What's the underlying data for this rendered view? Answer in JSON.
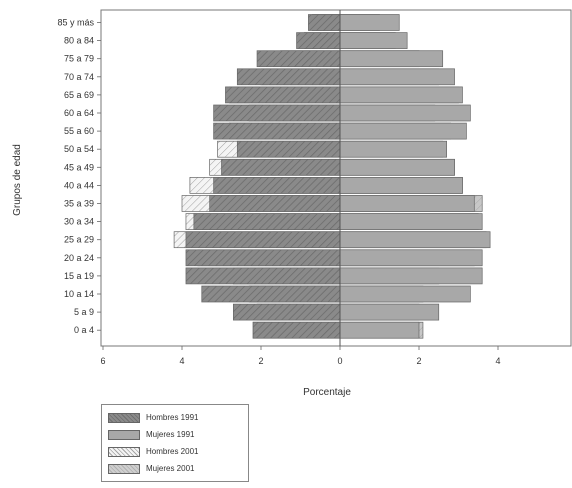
{
  "chart_data": {
    "type": "bar",
    "orientation": "horizontal",
    "subtype": "population-pyramid",
    "categories": [
      "0 a 4",
      "5 a 9",
      "10 a 14",
      "15 a 19",
      "20 a 24",
      "25 a 29",
      "30 a 34",
      "35 a 39",
      "40 a 44",
      "45 a 49",
      "50 a 54",
      "55 a 60",
      "60 a 64",
      "65 a 69",
      "70 a 74",
      "75 a 79",
      "80 a 84",
      "85 y más"
    ],
    "series": [
      {
        "name": "Hombres 1991",
        "side": "left",
        "color": "#8a8a8a",
        "pattern": "hatch-dark",
        "values": [
          2.2,
          2.7,
          3.5,
          3.9,
          3.9,
          3.9,
          3.7,
          3.3,
          3.2,
          3.0,
          2.6,
          3.2,
          3.2,
          2.9,
          2.6,
          2.1,
          1.1,
          0.8
        ]
      },
      {
        "name": "Mujeres 1991",
        "side": "right",
        "color": "#a8a8a8",
        "pattern": "solid",
        "values": [
          2.0,
          2.5,
          3.3,
          3.6,
          3.6,
          3.8,
          3.6,
          3.4,
          3.1,
          2.9,
          2.7,
          3.2,
          3.3,
          3.1,
          2.9,
          2.6,
          1.7,
          1.5
        ]
      },
      {
        "name": "Hombres 2001",
        "side": "left",
        "color": "#f2f2f2",
        "pattern": "hatch-light",
        "values": [
          2.2,
          2.1,
          2.3,
          2.7,
          3.6,
          4.2,
          3.9,
          4.0,
          3.8,
          3.3,
          3.1,
          2.8,
          2.3,
          2.8,
          2.0,
          1.5,
          0.9,
          0.7
        ]
      },
      {
        "name": "Mujeres 2001",
        "side": "right",
        "color": "#c6c6c6",
        "pattern": "hatch-light",
        "values": [
          2.1,
          2.0,
          2.1,
          2.5,
          3.4,
          3.7,
          3.5,
          3.6,
          3.1,
          2.9,
          2.6,
          2.8,
          2.4,
          3.0,
          2.5,
          2.0,
          1.4,
          1.0
        ]
      }
    ],
    "xlabel": "Porcentaje",
    "ylabel": "Grupos de edad",
    "xlim": [
      -6,
      6
    ],
    "xticks": [
      -6,
      -4,
      -2,
      0,
      2,
      4,
      6
    ],
    "xtick_labels": [
      "6",
      "4",
      "2",
      "0",
      "2",
      "4",
      "6"
    ],
    "legend_position": "bottom-left",
    "grid": false
  }
}
